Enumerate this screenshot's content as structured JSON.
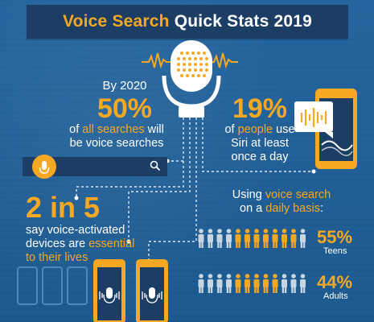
{
  "title": {
    "part1": "Voice Search",
    "part2": "Quick Stats 2019"
  },
  "stat1": {
    "line1": "By 2020",
    "value": "50%",
    "line2a": "of ",
    "line2b": "all searches",
    "line2c": " will",
    "line3": "be voice searches"
  },
  "stat2": {
    "value": "19%",
    "line1a": "of ",
    "line1b": "people",
    "line1c": " use",
    "line2": "Siri at least",
    "line3": "once a day"
  },
  "stat3": {
    "value": "2 in 5",
    "line1": "say voice-activated",
    "line2a": "devices are ",
    "line2b": "essential",
    "line3": "to their lives"
  },
  "stat4": {
    "line1a": "Using ",
    "line1b": "voice search",
    "line2a": "on a ",
    "line2b": "daily basis",
    "line2c": ":"
  },
  "teens": {
    "value": "55%",
    "label": "Teens",
    "fraction": 0.55,
    "icons_total": 12,
    "icons_highlighted": 7
  },
  "adults": {
    "value": "44%",
    "label": "Adults",
    "fraction": 0.44,
    "icons_total": 12,
    "icons_highlighted": 5
  },
  "colors": {
    "accent": "#f7a823",
    "background": "#1f5f93",
    "dark": "#1c3e64",
    "white": "#ffffff"
  },
  "icons": [
    "microphone-icon",
    "search-icon",
    "smartphone-icon",
    "speech-bubble-icon",
    "person-icon",
    "sound-wave-icon"
  ]
}
